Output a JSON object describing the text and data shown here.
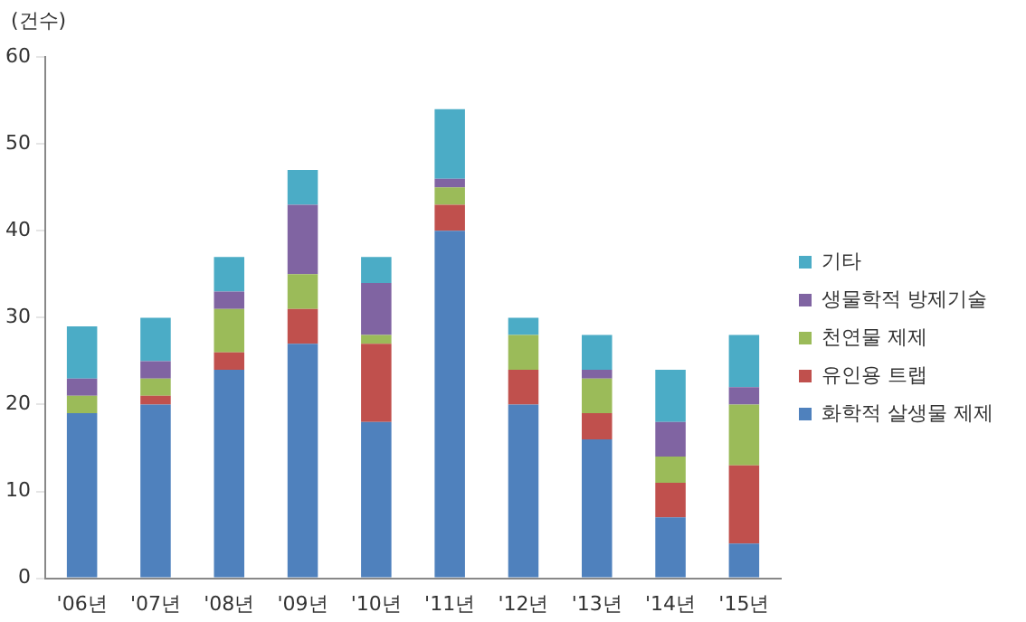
{
  "chart_data": {
    "type": "bar",
    "ylabel": "(건수)",
    "stacked": true,
    "categories": [
      "'06년",
      "'07년",
      "'08년",
      "'09년",
      "'10년",
      "'11년",
      "'12년",
      "'13년",
      "'14년",
      "'15년"
    ],
    "series": [
      {
        "name": "화학적 살생물 제제",
        "color": "#4f81bd",
        "values": [
          19,
          20,
          24,
          27,
          18,
          40,
          20,
          16,
          7,
          4
        ]
      },
      {
        "name": "유인용 트랩",
        "color": "#c0504d",
        "values": [
          0,
          1,
          2,
          4,
          9,
          3,
          4,
          3,
          4,
          9
        ]
      },
      {
        "name": "천연물 제제",
        "color": "#9bbb59",
        "values": [
          2,
          2,
          5,
          4,
          1,
          2,
          4,
          4,
          3,
          7
        ]
      },
      {
        "name": "생물학적 방제기술",
        "color": "#8064a2",
        "values": [
          2,
          2,
          2,
          8,
          6,
          1,
          0,
          1,
          4,
          2
        ]
      },
      {
        "name": "기타",
        "color": "#4bacc6",
        "values": [
          6,
          5,
          4,
          4,
          3,
          8,
          2,
          4,
          6,
          6
        ]
      }
    ],
    "ylim": [
      0,
      60
    ],
    "yticks": [
      0,
      10,
      20,
      30,
      40,
      50,
      60
    ],
    "grid": false,
    "legend": "right"
  }
}
